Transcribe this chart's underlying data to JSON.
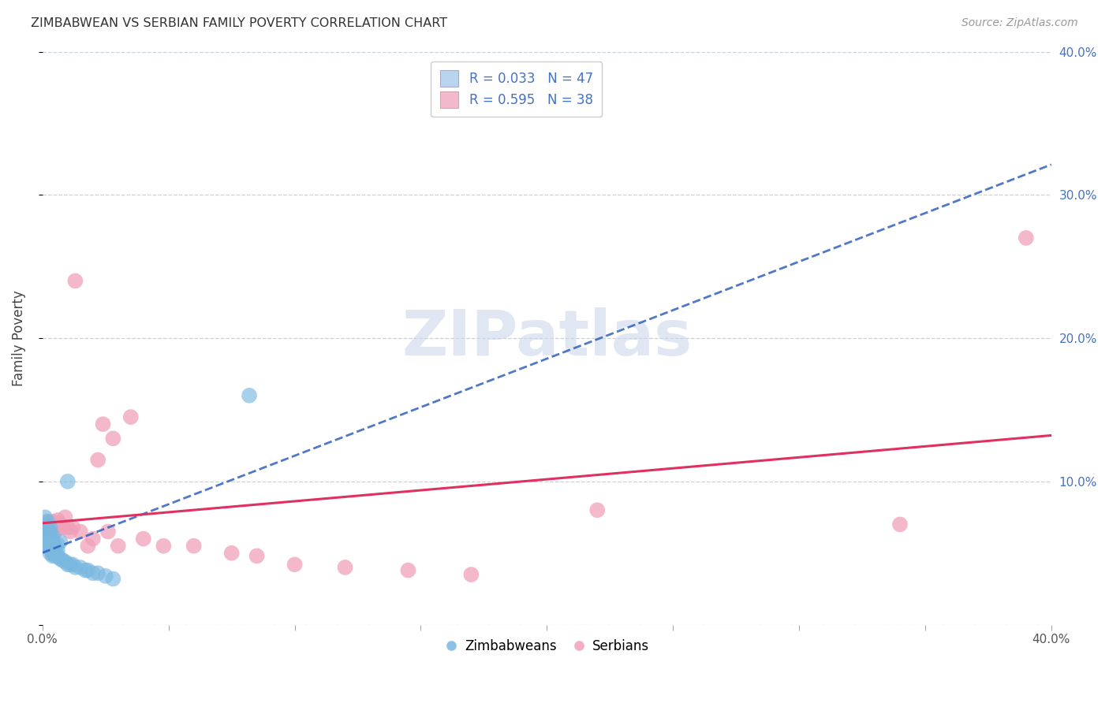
{
  "title": "ZIMBABWEAN VS SERBIAN FAMILY POVERTY CORRELATION CHART",
  "source": "Source: ZipAtlas.com",
  "ylabel": "Family Poverty",
  "xlim": [
    0.0,
    0.4
  ],
  "ylim": [
    0.0,
    0.4
  ],
  "zimbabwean_color": "#7ab8e0",
  "serbian_color": "#f0a0b8",
  "zimbabwean_line_color": "#3060c0",
  "serbian_line_color": "#e03060",
  "watermark_color": "#ccd8ec",
  "background_color": "#ffffff",
  "grid_color": "#c8d0e0",
  "zimbabwean_x": [
    0.001,
    0.001,
    0.001,
    0.001,
    0.002,
    0.002,
    0.002,
    0.002,
    0.002,
    0.002,
    0.002,
    0.003,
    0.003,
    0.003,
    0.003,
    0.003,
    0.003,
    0.003,
    0.004,
    0.004,
    0.004,
    0.004,
    0.004,
    0.004,
    0.005,
    0.005,
    0.005,
    0.006,
    0.006,
    0.006,
    0.007,
    0.007,
    0.008,
    0.009,
    0.01,
    0.01,
    0.011,
    0.012,
    0.013,
    0.015,
    0.017,
    0.018,
    0.02,
    0.022,
    0.025,
    0.028,
    0.082
  ],
  "zimbabwean_y": [
    0.06,
    0.065,
    0.07,
    0.075,
    0.055,
    0.058,
    0.06,
    0.063,
    0.067,
    0.07,
    0.072,
    0.05,
    0.053,
    0.056,
    0.058,
    0.062,
    0.065,
    0.068,
    0.048,
    0.05,
    0.053,
    0.056,
    0.058,
    0.062,
    0.048,
    0.052,
    0.055,
    0.048,
    0.052,
    0.056,
    0.046,
    0.058,
    0.045,
    0.044,
    0.042,
    0.1,
    0.042,
    0.042,
    0.04,
    0.04,
    0.038,
    0.038,
    0.036,
    0.036,
    0.034,
    0.032,
    0.16
  ],
  "serbian_x": [
    0.001,
    0.002,
    0.003,
    0.003,
    0.004,
    0.004,
    0.005,
    0.005,
    0.006,
    0.006,
    0.007,
    0.008,
    0.009,
    0.01,
    0.011,
    0.012,
    0.013,
    0.015,
    0.018,
    0.02,
    0.022,
    0.024,
    0.026,
    0.028,
    0.03,
    0.035,
    0.04,
    0.048,
    0.06,
    0.075,
    0.085,
    0.1,
    0.12,
    0.145,
    0.17,
    0.22,
    0.34,
    0.39
  ],
  "serbian_y": [
    0.068,
    0.072,
    0.065,
    0.07,
    0.068,
    0.072,
    0.065,
    0.07,
    0.068,
    0.073,
    0.07,
    0.068,
    0.075,
    0.068,
    0.065,
    0.068,
    0.24,
    0.065,
    0.055,
    0.06,
    0.115,
    0.14,
    0.065,
    0.13,
    0.055,
    0.145,
    0.06,
    0.055,
    0.055,
    0.05,
    0.048,
    0.042,
    0.04,
    0.038,
    0.035,
    0.08,
    0.07,
    0.27
  ]
}
